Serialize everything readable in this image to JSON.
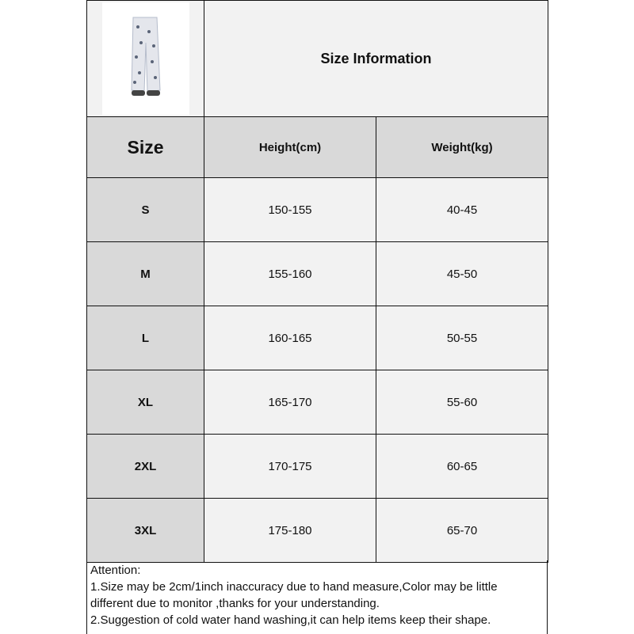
{
  "title": "Size Information",
  "headers": {
    "size": "Size",
    "height": "Height(cm)",
    "weight": "Weight(kg)"
  },
  "rows": [
    {
      "size": "S",
      "height": "150-155",
      "weight": "40-45"
    },
    {
      "size": "M",
      "height": "155-160",
      "weight": "45-50"
    },
    {
      "size": "L",
      "height": "160-165",
      "weight": "50-55"
    },
    {
      "size": "XL",
      "height": "165-170",
      "weight": "55-60"
    },
    {
      "size": "2XL",
      "height": "170-175",
      "weight": "60-65"
    },
    {
      "size": "3XL",
      "height": "175-180",
      "weight": "65-70"
    }
  ],
  "attention": {
    "heading": "Attention:",
    "line1": "1.Size may be 2cm/1inch inaccuracy due to hand measure,Color may be little",
    "line2": "different due to monitor ,thanks for your understanding.",
    "line3": "2.Suggestion of cold water hand washing,it can help items keep their shape."
  },
  "colors": {
    "header_gray": "#d9d9d9",
    "cell_light": "#f2f2f2"
  }
}
